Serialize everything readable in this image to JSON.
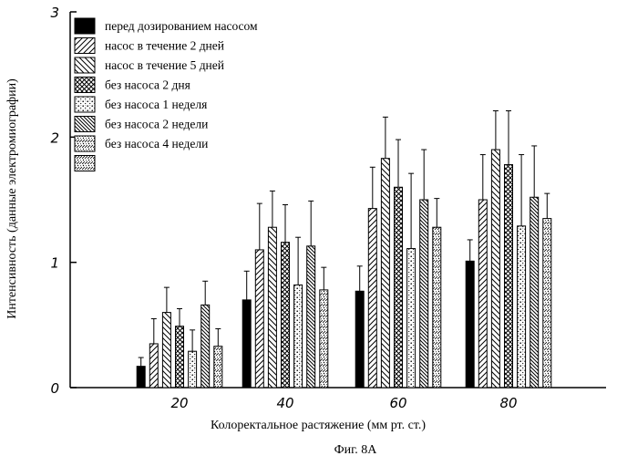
{
  "chart_data": {
    "type": "bar",
    "categories": [
      "20",
      "40",
      "60",
      "80"
    ],
    "series": [
      {
        "name": "перед дозированием насосом",
        "values": [
          0.17,
          0.7,
          0.77,
          1.01
        ],
        "errors": [
          0.07,
          0.23,
          0.2,
          0.17
        ],
        "pattern": "solid"
      },
      {
        "name": "насос в течение 2 дней",
        "values": [
          0.35,
          1.1,
          1.43,
          1.5
        ],
        "errors": [
          0.2,
          0.37,
          0.33,
          0.36
        ],
        "pattern": "diag-right"
      },
      {
        "name": "насос в течение 5 дней",
        "values": [
          0.6,
          1.28,
          1.83,
          1.9
        ],
        "errors": [
          0.2,
          0.29,
          0.33,
          0.31
        ],
        "pattern": "diag-left"
      },
      {
        "name": "без насоса 2 дня",
        "values": [
          0.49,
          1.16,
          1.6,
          1.78
        ],
        "errors": [
          0.14,
          0.3,
          0.38,
          0.43
        ],
        "pattern": "crosshatch"
      },
      {
        "name": "без насоса 1 неделя",
        "values": [
          0.29,
          0.82,
          1.11,
          1.29
        ],
        "errors": [
          0.17,
          0.38,
          0.6,
          0.57
        ],
        "pattern": "dots"
      },
      {
        "name": "без насоса 2 недели",
        "values": [
          0.66,
          1.13,
          1.5,
          1.52
        ],
        "errors": [
          0.19,
          0.36,
          0.4,
          0.41
        ],
        "pattern": "diag-left-dense"
      },
      {
        "name": "без насоса 4 недели",
        "values": [
          0.33,
          0.78,
          1.28,
          1.35
        ],
        "errors": [
          0.14,
          0.18,
          0.23,
          0.2
        ],
        "pattern": "speckle"
      }
    ],
    "xlabel": "Колоректальное растяжение (мм рт. ст.)",
    "ylabel": "Интенсивность (данные электромиографии)",
    "ylim": [
      0,
      3
    ],
    "yticks": [
      "0",
      "1",
      "2",
      "3"
    ],
    "legend_position": "top-left",
    "grid": false
  },
  "caption": "Фиг. 8А"
}
